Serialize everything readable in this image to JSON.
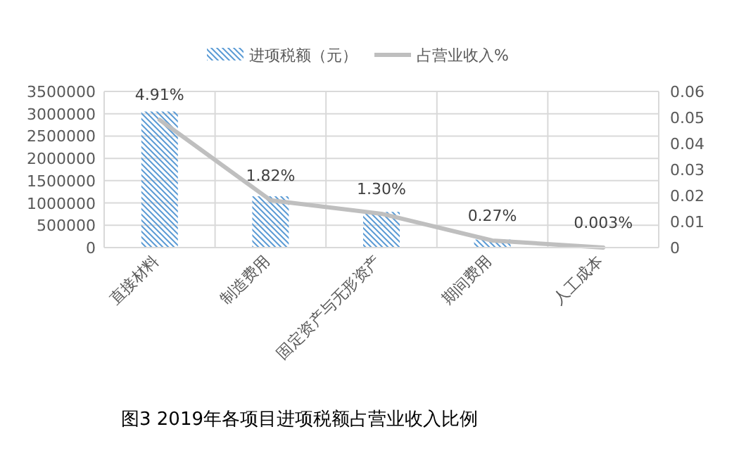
{
  "chart_data": {
    "type": "bar",
    "title": "图3  2019年各项目进项税额占营业收入比例",
    "categories": [
      "直接材料",
      "制造费用",
      "固定资产与无形资产",
      "期间费用",
      "人工成本"
    ],
    "series": [
      {
        "name": "进项税额（元）",
        "color": "#5b9bd5",
        "values": [
          3050000,
          1150000,
          800000,
          180000,
          null
        ]
      },
      {
        "name": "占营业收入%",
        "type": "line",
        "axis": "y2",
        "color": "#bfbfbf",
        "values": [
          0.0491,
          0.0182,
          0.013,
          0.0027,
          3e-05
        ],
        "value_labels": [
          "4.91%",
          "1.82%",
          "1.30%",
          "0.27%",
          "0.003%"
        ]
      }
    ],
    "ylim": [
      0,
      3500000
    ],
    "yticks": [
      0,
      500000,
      1000000,
      1500000,
      2000000,
      2500000,
      3000000,
      3500000
    ],
    "y2lim": [
      0,
      0.06
    ],
    "y2ticks": [
      0,
      0.01,
      0.02,
      0.03,
      0.04,
      0.05,
      0.06
    ],
    "grid": true,
    "legend": "top"
  }
}
